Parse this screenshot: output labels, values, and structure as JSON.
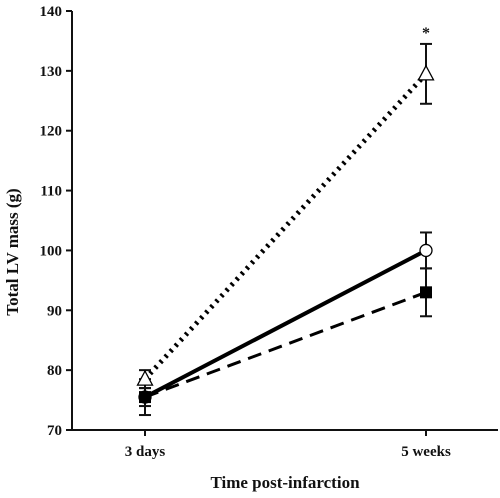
{
  "chart_data": {
    "type": "line",
    "categories": [
      "3 days",
      "5 weeks"
    ],
    "xlabel": "Time post-infarction",
    "ylabel": "Total LV mass (g)",
    "ylim": [
      70,
      140
    ],
    "yticks": [
      70,
      80,
      90,
      100,
      110,
      120,
      130,
      140
    ],
    "grid": false,
    "legend": "none",
    "series": [
      {
        "marker": "triangle-open",
        "line_style": "dotted",
        "color": "#000000",
        "values": [
          78.5,
          129.5
        ],
        "errors": [
          1.5,
          5.0
        ],
        "annotation": [
          "",
          "*"
        ]
      },
      {
        "marker": "circle-open",
        "line_style": "solid",
        "color": "#000000",
        "values": [
          75.5,
          100.0
        ],
        "errors": [
          1.5,
          3.0
        ],
        "annotation": [
          "",
          ""
        ]
      },
      {
        "marker": "square-filled",
        "line_style": "dashed",
        "color": "#000000",
        "values": [
          75.5,
          93.0
        ],
        "errors": [
          3.0,
          4.0
        ],
        "annotation": [
          "",
          ""
        ]
      }
    ]
  }
}
